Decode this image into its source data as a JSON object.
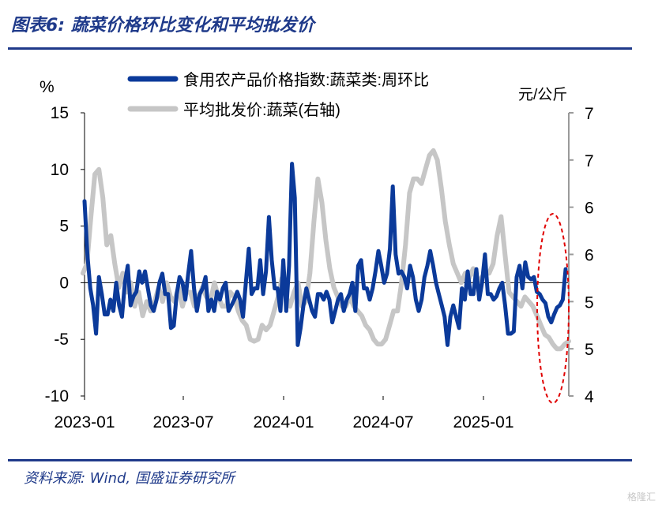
{
  "header": {
    "title": "图表6:  蔬菜价格环比变化和平均批发价"
  },
  "footer": {
    "source": "资料来源:  Wind,  国盛证券研究所",
    "watermark": "格隆汇"
  },
  "colors": {
    "series1": "#0b3a9a",
    "series2": "#c6c6c6",
    "highlight": "#e00000",
    "axis": "#000000"
  },
  "chart_data": {
    "type": "line",
    "left_unit": "%",
    "right_unit": "元/公斤",
    "x_ticks": [
      "2023-01",
      "2023-07",
      "2024-01",
      "2024-07",
      "2025-01"
    ],
    "y_left": {
      "min": -10,
      "max": 15,
      "ticks": [
        "15",
        "10",
        "5",
        "0",
        "-5",
        "-10"
      ]
    },
    "y_right": {
      "min": 4,
      "max": 7,
      "ticks": [
        "7",
        "7",
        "6",
        "6",
        "5",
        "5",
        "4"
      ]
    },
    "legend_position": "top",
    "series": [
      {
        "name": "食用农产品价格指数:蔬菜类:周环比",
        "axis": "left",
        "values": [
          7.2,
          2.5,
          -0.5,
          -2,
          -4.5,
          0.5,
          -1,
          -2.8,
          -2.8,
          -1.5,
          -2.5,
          0,
          -2,
          -3,
          0,
          1.5,
          -2,
          -1.2,
          -0.8,
          1,
          0,
          1,
          -0.5,
          -2,
          -2.5,
          -1.5,
          0,
          0.8,
          -1,
          -1,
          -4,
          -3.8,
          -1,
          0.5,
          0,
          -1.5,
          0.8,
          2.8,
          -0.5,
          -2.5,
          -1,
          -0.5,
          0.5,
          -2.5,
          -1.5,
          -2.5,
          -0.8,
          -1.5,
          -0.5,
          0,
          -2.5,
          -2,
          -1.5,
          -0.8,
          -1.5,
          -3,
          0,
          3,
          -1,
          -0.5,
          -0.5,
          2,
          -1,
          1,
          5.8,
          2,
          -0.5,
          -0.5,
          -2.5,
          2,
          -2.5,
          1.5,
          10.5,
          7.5,
          -5.5,
          -4,
          -2,
          -0.5,
          -1.5,
          -2.5,
          -3,
          -1,
          -1,
          -1.5,
          -0.8,
          -1.5,
          -3.5,
          -2.5,
          -1.5,
          -1,
          -2.5,
          -1.5,
          -1,
          0,
          -2.5,
          1.5,
          2,
          -0.5,
          -0.5,
          -1.5,
          -0.5,
          1,
          2.8,
          1.5,
          0,
          0.8,
          3,
          8.5,
          2.5,
          0.8,
          1,
          0.5,
          -0.5,
          1.5,
          0.5,
          -1.5,
          -2.5,
          -1.5,
          0.5,
          1.5,
          2.8,
          1.5,
          0,
          -1,
          -2,
          -3,
          -5.5,
          -3,
          -2,
          -3,
          -4,
          -0.5,
          -1.5,
          1,
          -1,
          -1,
          1.2,
          -1.5,
          0,
          2.5,
          -1,
          -1,
          -1.5,
          -1.2,
          -0.5,
          0,
          -2,
          -4.5,
          -4.5,
          -4.3,
          0.5,
          1.5,
          -0.5,
          1.8,
          0.5,
          0.3,
          0.5,
          -0.8,
          -1,
          -1.5,
          -1.8,
          -3,
          -3.5,
          -2.8,
          -2.2,
          -2,
          -1.5,
          1.2
        ],
        "color": "#0b3a9a"
      },
      {
        "name": "平均批发价:蔬菜(右轴)",
        "axis": "right",
        "values": [
          5.3,
          5.4,
          5.9,
          6.35,
          6.4,
          6.1,
          5.6,
          5.7,
          5.4,
          5.15,
          5.3,
          5.1,
          5.2,
          4.95,
          5.1,
          4.85,
          5,
          4.9,
          5,
          5.15,
          5,
          5.2,
          5.05,
          5,
          5.15,
          4.95,
          5.1,
          5.1,
          4.95,
          5.05,
          5.15,
          5.05,
          5,
          5.2,
          5.05,
          4.95,
          4.95,
          5.1,
          5.05,
          4.9,
          4.8,
          4.75,
          4.6,
          4.58,
          4.6,
          4.75,
          4.7,
          4.75,
          4.9,
          5.05,
          5.25,
          5.05,
          4.95,
          5.1,
          5.2,
          4.95,
          5,
          5.3,
          5.85,
          6.3,
          6.05,
          5.65,
          5.35,
          5.15,
          5.05,
          4.95,
          4.95,
          5.05,
          4.95,
          4.9,
          4.85,
          4.75,
          4.7,
          4.6,
          4.55,
          4.55,
          4.6,
          4.75,
          4.9,
          4.9,
          5.2,
          5.6,
          6.15,
          6.3,
          6.3,
          6.25,
          6.4,
          6.55,
          6.6,
          6.5,
          6.2,
          5.85,
          5.6,
          5.4,
          5.3,
          5.2,
          5.3,
          5.25,
          5.35,
          5.2,
          5.25,
          5.3,
          5.3,
          5.4,
          5.7,
          5.9,
          5.5,
          5.1,
          5.05,
          5,
          4.95,
          5.05,
          5,
          4.95,
          4.85,
          4.75,
          4.65,
          4.62,
          4.55,
          4.5,
          4.5,
          4.55,
          4.58
        ],
        "color": "#c6c6c6"
      }
    ]
  }
}
